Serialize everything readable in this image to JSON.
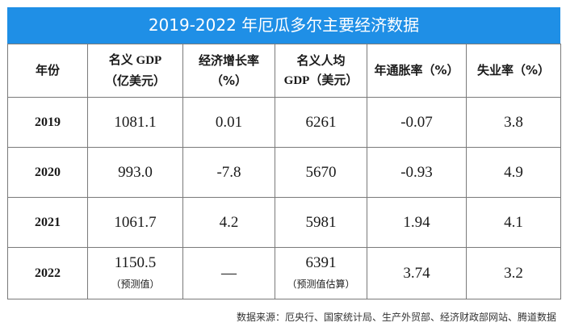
{
  "colors": {
    "header_bg": "#1f8fe6",
    "header_text": "#ffffff",
    "grid": "#7a7a7a"
  },
  "title": "2019-2022 年厄瓜多尔主要经济数据",
  "headers": {
    "year": "年份",
    "gdp_line1": "名义 GDP",
    "gdp_line2": "（亿美元）",
    "growth_line1": "经济增长率",
    "growth_line2": "（%）",
    "percap_line1": "名义人均",
    "percap_line2": "GDP（美元）",
    "inflation": "年通胀率（%）",
    "unemployment": "失业率（%）"
  },
  "chart_data": {
    "type": "table",
    "title": "2019-2022 年厄瓜多尔主要经济数据",
    "columns": [
      "年份",
      "名义 GDP（亿美元）",
      "经济增长率（%）",
      "名义人均 GDP（美元）",
      "年通胀率（%）",
      "失业率（%）"
    ],
    "rows": [
      {
        "year": "2019",
        "gdp": "1081.1",
        "gdp_note": "",
        "growth": "0.01",
        "percap": "6261",
        "percap_note": "",
        "inflation": "-0.07",
        "unemployment": "3.8"
      },
      {
        "year": "2020",
        "gdp": "993.0",
        "gdp_note": "",
        "growth": "-7.8",
        "percap": "5670",
        "percap_note": "",
        "inflation": "-0.93",
        "unemployment": "4.9"
      },
      {
        "year": "2021",
        "gdp": "1061.7",
        "gdp_note": "",
        "growth": "4.2",
        "percap": "5981",
        "percap_note": "",
        "inflation": "1.94",
        "unemployment": "4.1"
      },
      {
        "year": "2022",
        "gdp": "1150.5",
        "gdp_note": "（预测值）",
        "growth": "—",
        "percap": "6391",
        "percap_note": "（预测值估算）",
        "inflation": "3.74",
        "unemployment": "3.2"
      }
    ]
  },
  "source": "数据来源：厄央行、国家统计局、生产外贸部、经济财政部网站、腾道数据"
}
